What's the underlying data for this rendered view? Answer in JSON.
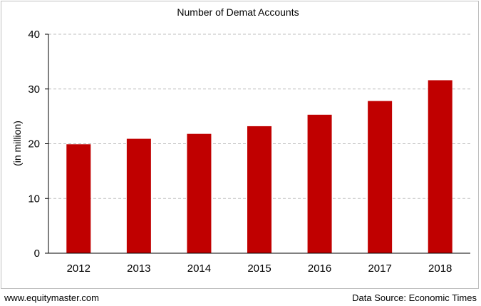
{
  "chart_data": {
    "type": "bar",
    "title": "Number of Demat Accounts",
    "ylabel": "(in million)",
    "xlabel": "",
    "categories": [
      "2012",
      "2013",
      "2014",
      "2015",
      "2016",
      "2017",
      "2018"
    ],
    "values": [
      19.9,
      20.9,
      21.8,
      23.2,
      25.3,
      27.8,
      31.6
    ],
    "ylim": [
      0,
      40
    ],
    "yticks": [
      0,
      10,
      20,
      30,
      40
    ],
    "grid": true,
    "bar_color": "#c00000"
  },
  "footer": {
    "website": "www.equitymaster.com",
    "source": "Data Source: Economic Times"
  }
}
